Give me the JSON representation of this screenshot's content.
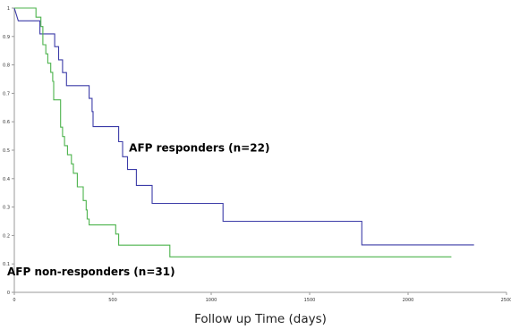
{
  "chart_data": {
    "type": "line",
    "title": "",
    "xlabel": "Follow up Time (days)",
    "ylabel": "",
    "xlim": [
      0,
      2500
    ],
    "ylim": [
      0,
      1
    ],
    "x_ticks": [
      "0",
      "500",
      "1000",
      "1500",
      "2000",
      "2500"
    ],
    "y_ticks": [
      "0",
      "0.1",
      "0.2",
      "0.3",
      "0.4",
      "0.5",
      "0.6",
      "0.7",
      "0.8",
      "0.9",
      "1"
    ],
    "grid": false,
    "step": true,
    "series": [
      {
        "name": "AFP responders (n=22)",
        "color": "#3c3ca8",
        "points": [
          [
            0,
            1
          ],
          [
            20,
            0.955
          ],
          [
            130,
            0.955
          ],
          [
            130,
            0.955
          ],
          [
            130,
            0.909
          ],
          [
            205,
            0.909
          ],
          [
            205,
            0.864
          ],
          [
            225,
            0.864
          ],
          [
            225,
            0.818
          ],
          [
            245,
            0.818
          ],
          [
            245,
            0.773
          ],
          [
            265,
            0.773
          ],
          [
            265,
            0.727
          ],
          [
            380,
            0.727
          ],
          [
            380,
            0.682
          ],
          [
            395,
            0.682
          ],
          [
            395,
            0.636
          ],
          [
            400,
            0.636
          ],
          [
            400,
            0.583
          ],
          [
            530,
            0.583
          ],
          [
            530,
            0.53
          ],
          [
            550,
            0.53
          ],
          [
            550,
            0.477
          ],
          [
            575,
            0.477
          ],
          [
            575,
            0.432
          ],
          [
            620,
            0.432
          ],
          [
            620,
            0.376
          ],
          [
            700,
            0.376
          ],
          [
            700,
            0.313
          ],
          [
            1060,
            0.313
          ],
          [
            1060,
            0.25
          ],
          [
            1765,
            0.25
          ],
          [
            1765,
            0.167
          ],
          [
            2335,
            0.167
          ]
        ]
      },
      {
        "name": "AFP non-responders (n=31)",
        "color": "#4cb34c",
        "points": [
          [
            0,
            1
          ],
          [
            110,
            1
          ],
          [
            110,
            0.968
          ],
          [
            135,
            0.968
          ],
          [
            135,
            0.935
          ],
          [
            145,
            0.935
          ],
          [
            145,
            0.871
          ],
          [
            160,
            0.871
          ],
          [
            160,
            0.839
          ],
          [
            170,
            0.839
          ],
          [
            170,
            0.806
          ],
          [
            185,
            0.806
          ],
          [
            185,
            0.774
          ],
          [
            195,
            0.774
          ],
          [
            195,
            0.742
          ],
          [
            200,
            0.742
          ],
          [
            200,
            0.677
          ],
          [
            235,
            0.677
          ],
          [
            235,
            0.581
          ],
          [
            245,
            0.581
          ],
          [
            245,
            0.548
          ],
          [
            255,
            0.548
          ],
          [
            255,
            0.516
          ],
          [
            270,
            0.516
          ],
          [
            270,
            0.484
          ],
          [
            290,
            0.484
          ],
          [
            290,
            0.452
          ],
          [
            300,
            0.452
          ],
          [
            300,
            0.419
          ],
          [
            320,
            0.419
          ],
          [
            320,
            0.371
          ],
          [
            350,
            0.371
          ],
          [
            350,
            0.323
          ],
          [
            365,
            0.323
          ],
          [
            365,
            0.29
          ],
          [
            370,
            0.29
          ],
          [
            370,
            0.258
          ],
          [
            380,
            0.258
          ],
          [
            380,
            0.237
          ],
          [
            515,
            0.237
          ],
          [
            515,
            0.205
          ],
          [
            530,
            0.205
          ],
          [
            530,
            0.166
          ],
          [
            790,
            0.166
          ],
          [
            790,
            0.125
          ],
          [
            2220,
            0.125
          ]
        ]
      }
    ],
    "annotations": [
      {
        "text": "AFP responders (n=22)",
        "x": 940,
        "y": 0.495
      },
      {
        "text": "AFP non-responders (n=31)",
        "x": 390,
        "y": 0.06
      }
    ]
  }
}
